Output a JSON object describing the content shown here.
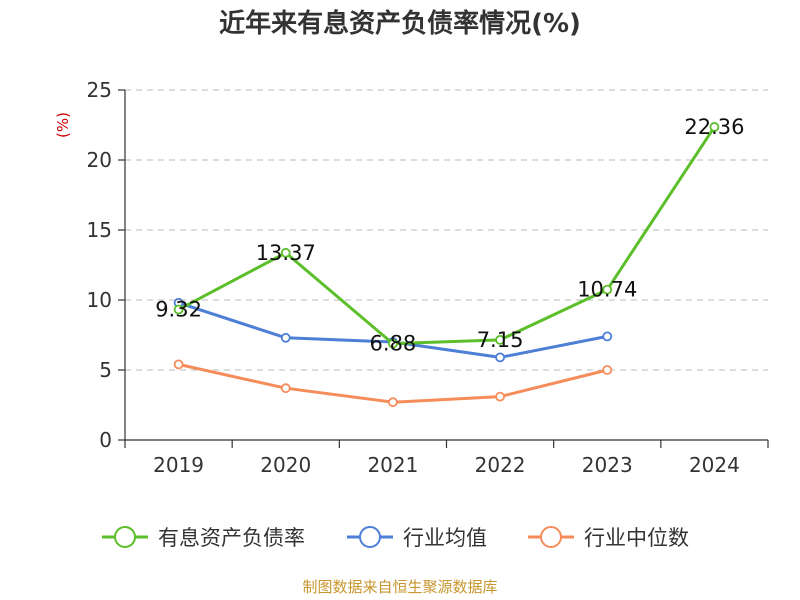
{
  "chart_data": {
    "type": "line",
    "title": "近年来有息资产负债率情况(%)",
    "unit_label": "(%)",
    "categories": [
      "2019",
      "2020",
      "2021",
      "2022",
      "2023",
      "2024"
    ],
    "ylim": [
      0,
      25
    ],
    "yticks": [
      "0",
      "5",
      "10",
      "15",
      "20",
      "25"
    ],
    "grid": true,
    "legend_position": "bottom",
    "series": [
      {
        "name": "有息资产负债率",
        "color": "#5cbf2a",
        "values": [
          9.32,
          13.37,
          6.88,
          7.15,
          10.74,
          22.36
        ],
        "labels": [
          "9.32",
          "13.37",
          "6.88",
          "7.15",
          "10.74",
          "22.36"
        ]
      },
      {
        "name": "行业均值",
        "color": "#4d7fd6",
        "values": [
          9.8,
          7.3,
          7.0,
          5.9,
          7.4,
          null
        ]
      },
      {
        "name": "行业中位数",
        "color": "#f58c5a",
        "values": [
          5.4,
          3.7,
          2.7,
          3.1,
          5.0,
          null
        ]
      }
    ]
  },
  "footer": {
    "source": "制图数据来自恒生聚源数据库"
  }
}
